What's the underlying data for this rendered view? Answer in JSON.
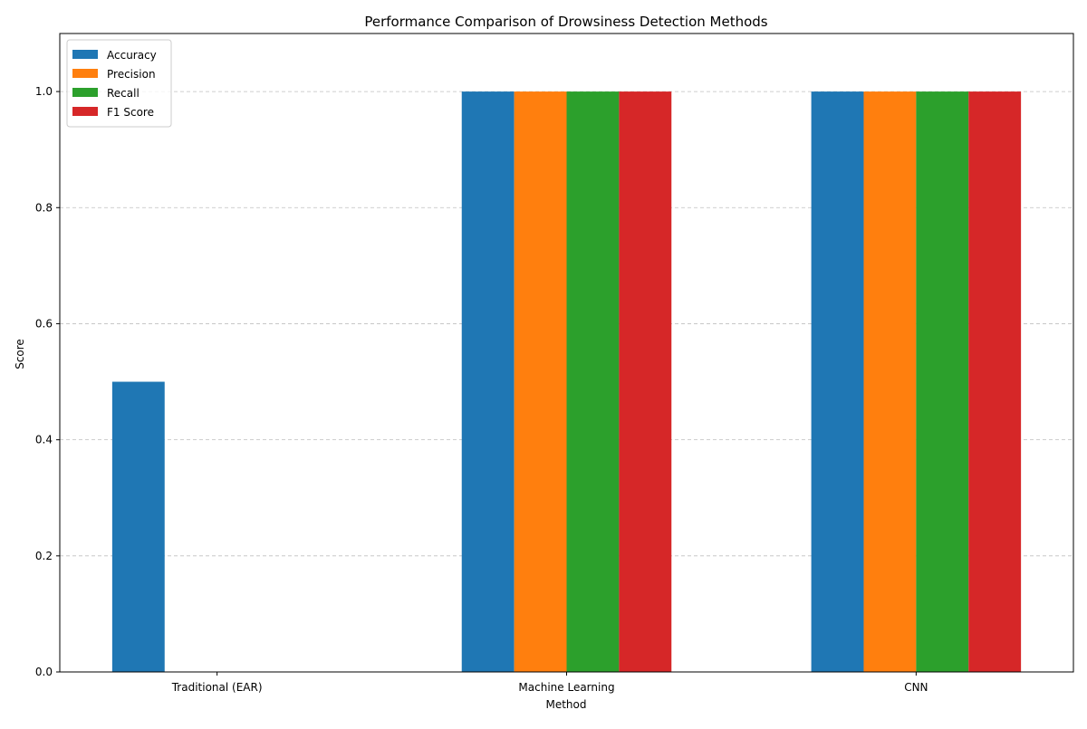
{
  "chart_data": {
    "type": "bar",
    "title": "Performance Comparison of Drowsiness Detection Methods",
    "xlabel": "Method",
    "ylabel": "Score",
    "categories": [
      "Traditional (EAR)",
      "Machine Learning",
      "CNN"
    ],
    "series": [
      {
        "name": "Accuracy",
        "color": "#1f77b4",
        "values": [
          0.5,
          1.0,
          1.0
        ]
      },
      {
        "name": "Precision",
        "color": "#ff7f0e",
        "values": [
          0.0,
          1.0,
          1.0
        ]
      },
      {
        "name": "Recall",
        "color": "#2ca02c",
        "values": [
          0.0,
          1.0,
          1.0
        ]
      },
      {
        "name": "F1 Score",
        "color": "#d62728",
        "values": [
          0.0,
          1.0,
          1.0
        ]
      }
    ],
    "ylim": [
      0,
      1.1
    ],
    "yticks": [
      0.0,
      0.2,
      0.4,
      0.6,
      0.8,
      1.0
    ],
    "ytick_labels": [
      "0.0",
      "0.2",
      "0.4",
      "0.6",
      "0.8",
      "1.0"
    ],
    "grid": "y-dashed",
    "legend_position": "top-left"
  }
}
